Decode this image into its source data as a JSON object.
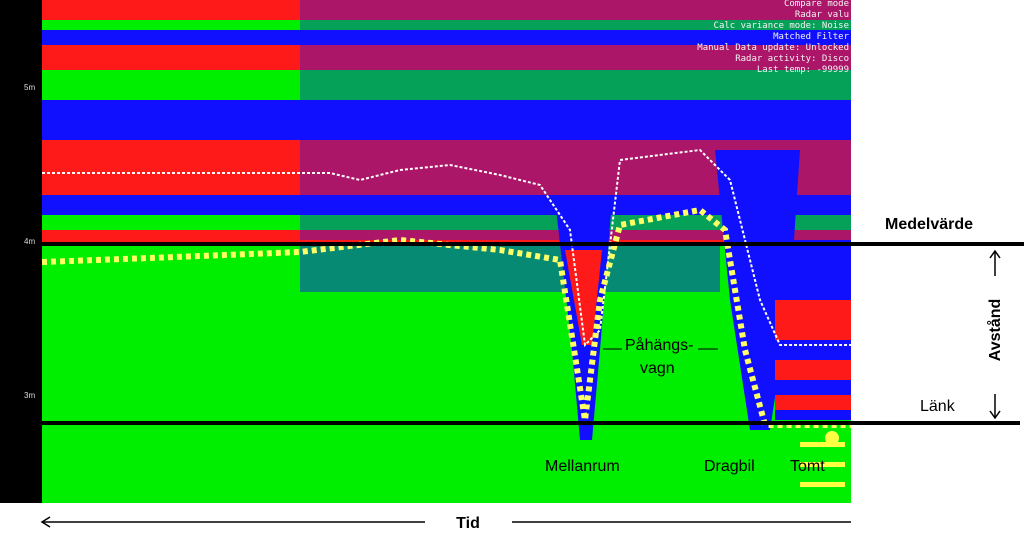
{
  "axis_labels": [
    "5m",
    "4m",
    "3m"
  ],
  "overlay_text": [
    "Compare mode",
    "Radar valu",
    "Calc variance mode: Noise",
    "Matched Filter",
    "Manual Data update: Unlocked",
    "Radar activity: Disco",
    "Last temp: -99999"
  ],
  "annotations": {
    "medelvarde": "Medelvärde",
    "avstand": "Avstånd",
    "lank": "Länk",
    "pahangs": "Påhängs-",
    "vagn": "vagn",
    "mellanrum": "Mellanrum",
    "dragbil": "Dragbil",
    "tomt": "Tomt",
    "tid": "Tid"
  }
}
